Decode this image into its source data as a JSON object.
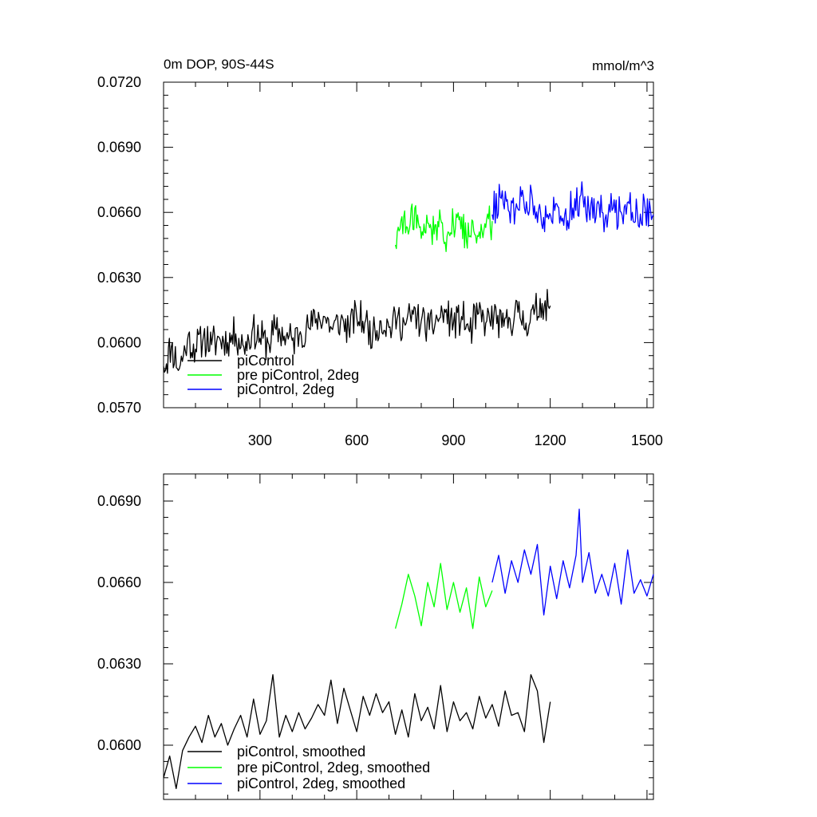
{
  "chart_data": [
    {
      "type": "line",
      "title": "0m DOP, 90S-44S",
      "units": "mmol/m^3",
      "xlabel": "",
      "ylabel": "",
      "xlim": [
        1,
        1520
      ],
      "ylim": [
        0.057,
        0.072
      ],
      "x_ticks": [
        300,
        600,
        900,
        1200,
        1500
      ],
      "x_tick_labels": [
        "300",
        "600",
        "900",
        "1200",
        "1500"
      ],
      "y_ticks": [
        0.057,
        0.06,
        0.063,
        0.066,
        0.069,
        0.072
      ],
      "y_tick_labels": [
        "0.0570",
        "0.0600",
        "0.0630",
        "0.0660",
        "0.0690",
        "0.0720"
      ],
      "grid": false,
      "legend_position": "bottom-left",
      "series": [
        {
          "name": "piControl",
          "color": "#000000",
          "x": [
            1,
            25,
            50,
            75,
            100,
            125,
            150,
            175,
            200,
            225,
            250,
            275,
            300,
            325,
            350,
            375,
            400,
            425,
            450,
            475,
            500,
            525,
            550,
            575,
            600,
            625,
            650,
            675,
            700,
            725,
            750,
            775,
            800,
            825,
            850,
            875,
            900,
            925,
            950,
            975,
            1000,
            1025,
            1050,
            1075,
            1100,
            1125,
            1150,
            1175,
            1200
          ],
          "y": [
            0.0589,
            0.0598,
            0.0588,
            0.0601,
            0.0597,
            0.0603,
            0.0599,
            0.0602,
            0.06,
            0.0604,
            0.0598,
            0.0605,
            0.0602,
            0.06,
            0.0606,
            0.0603,
            0.0601,
            0.0605,
            0.0607,
            0.0611,
            0.0612,
            0.0606,
            0.061,
            0.0607,
            0.0612,
            0.0609,
            0.0604,
            0.061,
            0.0607,
            0.0611,
            0.0608,
            0.0613,
            0.061,
            0.0606,
            0.0611,
            0.0614,
            0.0609,
            0.0612,
            0.0605,
            0.0613,
            0.0609,
            0.0612,
            0.0607,
            0.0611,
            0.0614,
            0.0609,
            0.0613,
            0.0618,
            0.0617
          ]
        },
        {
          "name": "pre piControl, 2deg",
          "color": "#00ff00",
          "x": [
            720,
            740,
            760,
            780,
            800,
            820,
            840,
            860,
            880,
            900,
            920,
            940,
            960,
            980,
            1000,
            1020
          ],
          "y": [
            0.0645,
            0.0658,
            0.065,
            0.0662,
            0.0648,
            0.0655,
            0.065,
            0.0657,
            0.0649,
            0.0654,
            0.0658,
            0.0647,
            0.0656,
            0.0651,
            0.0653,
            0.0656
          ]
        },
        {
          "name": "piControl, 2deg",
          "color": "#0000ff",
          "x": [
            1020,
            1045,
            1070,
            1095,
            1120,
            1145,
            1170,
            1195,
            1220,
            1245,
            1270,
            1295,
            1320,
            1345,
            1370,
            1395,
            1420,
            1445,
            1470,
            1495,
            1520
          ],
          "y": [
            0.0659,
            0.0667,
            0.0661,
            0.0664,
            0.0662,
            0.0666,
            0.066,
            0.0657,
            0.0664,
            0.0659,
            0.0662,
            0.0668,
            0.0661,
            0.0664,
            0.0657,
            0.0662,
            0.066,
            0.0664,
            0.066,
            0.0661,
            0.0659
          ]
        }
      ]
    },
    {
      "type": "line",
      "title": "",
      "xlabel": "",
      "ylabel": "",
      "xlim": [
        1,
        1520
      ],
      "ylim": [
        0.058,
        0.07
      ],
      "x_ticks": [
        300,
        600,
        900,
        1200,
        1500
      ],
      "y_ticks": [
        0.06,
        0.063,
        0.066,
        0.069
      ],
      "y_tick_labels": [
        "0.0600",
        "0.0630",
        "0.0660",
        "0.0690"
      ],
      "grid": false,
      "legend_position": "bottom-left",
      "series": [
        {
          "name": "piControl, smoothed",
          "color": "#000000",
          "x": [
            1,
            20,
            40,
            60,
            80,
            100,
            120,
            140,
            160,
            180,
            200,
            220,
            240,
            260,
            280,
            300,
            320,
            340,
            360,
            380,
            400,
            420,
            440,
            460,
            480,
            500,
            520,
            540,
            560,
            580,
            600,
            620,
            640,
            660,
            680,
            700,
            720,
            740,
            760,
            780,
            800,
            820,
            840,
            860,
            880,
            900,
            920,
            940,
            960,
            980,
            1000,
            1020,
            1040,
            1060,
            1080,
            1100,
            1120,
            1140,
            1160,
            1180,
            1200
          ],
          "y": [
            0.0588,
            0.0596,
            0.0584,
            0.0598,
            0.0603,
            0.0607,
            0.0601,
            0.0611,
            0.0603,
            0.0608,
            0.06,
            0.0606,
            0.0611,
            0.0603,
            0.0617,
            0.0604,
            0.0609,
            0.0626,
            0.0603,
            0.0611,
            0.0605,
            0.0612,
            0.0606,
            0.061,
            0.0615,
            0.0611,
            0.0624,
            0.0608,
            0.0621,
            0.0613,
            0.0605,
            0.0618,
            0.0611,
            0.0619,
            0.0612,
            0.0616,
            0.0604,
            0.0613,
            0.0603,
            0.0619,
            0.0609,
            0.0614,
            0.0606,
            0.0622,
            0.0605,
            0.0616,
            0.0609,
            0.0612,
            0.0606,
            0.0618,
            0.061,
            0.0615,
            0.0607,
            0.062,
            0.0611,
            0.0612,
            0.0605,
            0.0626,
            0.062,
            0.0601,
            0.0616
          ]
        },
        {
          "name": "pre piControl, 2deg, smoothed",
          "color": "#00ff00",
          "x": [
            720,
            740,
            760,
            780,
            800,
            820,
            840,
            860,
            880,
            900,
            920,
            940,
            960,
            980,
            1000,
            1020
          ],
          "y": [
            0.0643,
            0.0652,
            0.0663,
            0.0655,
            0.0644,
            0.066,
            0.0651,
            0.0667,
            0.065,
            0.066,
            0.0649,
            0.0658,
            0.0643,
            0.0662,
            0.0651,
            0.0657
          ]
        },
        {
          "name": "piControl, 2deg, smoothed",
          "color": "#0000ff",
          "x": [
            1020,
            1040,
            1060,
            1080,
            1100,
            1120,
            1140,
            1160,
            1180,
            1200,
            1220,
            1240,
            1260,
            1280,
            1290,
            1300,
            1320,
            1340,
            1360,
            1380,
            1400,
            1420,
            1440,
            1460,
            1480,
            1500,
            1520
          ],
          "y": [
            0.066,
            0.067,
            0.0656,
            0.0668,
            0.066,
            0.0672,
            0.0663,
            0.0674,
            0.0648,
            0.0666,
            0.0654,
            0.0668,
            0.0658,
            0.067,
            0.0687,
            0.066,
            0.0671,
            0.0656,
            0.0663,
            0.0655,
            0.0667,
            0.0652,
            0.0672,
            0.0656,
            0.0661,
            0.0655,
            0.0663
          ]
        }
      ]
    }
  ]
}
